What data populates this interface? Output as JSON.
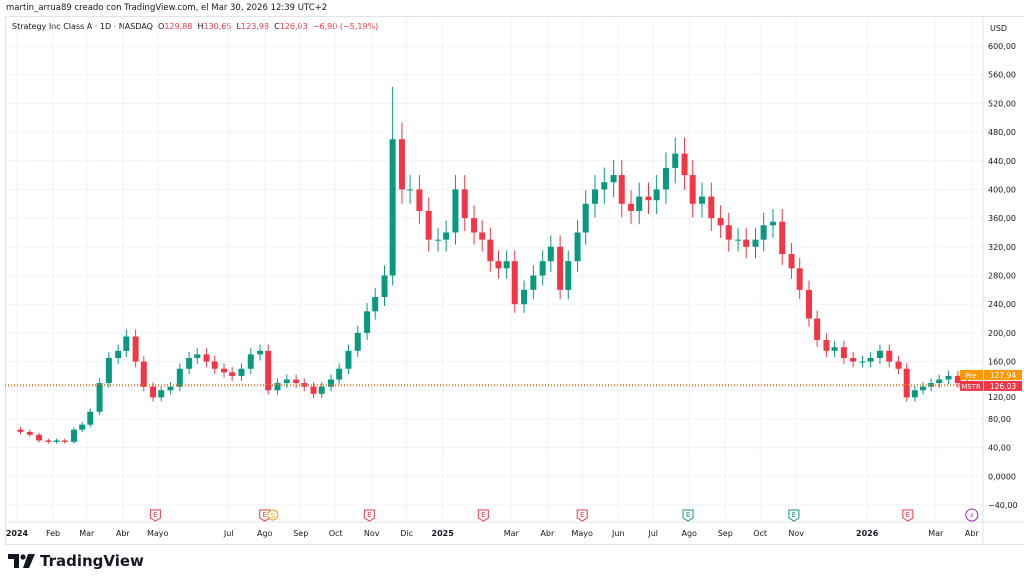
{
  "credit": "martin_arrua89 creado con TradingView.com, el Mar 30, 2026 12:39 UTC+2",
  "legend": {
    "symbol": "Strategy Inc Class A · 1D · NASDAQ",
    "o_label": "O",
    "o": "129,88",
    "h_label": "H",
    "h": "130,65",
    "l_label": "L",
    "l": "123,98",
    "c_label": "C",
    "c": "126,03",
    "change": "−6,90 (−5,19%)"
  },
  "currency": "USD",
  "colors": {
    "up": "#089981",
    "down": "#f23645",
    "pre": "#ff9800",
    "grid": "#f0f3fa",
    "dividend": "#ff9800",
    "split": "#9c27b0"
  },
  "price_tags": {
    "pre_label": "Pre",
    "pre_value": "127,94",
    "symbol_label": "MSTR",
    "last_value": "126,03"
  },
  "brand": "TradingView",
  "chart_data": {
    "type": "candlestick",
    "interval": "1D",
    "ylim": [
      -40,
      600
    ],
    "grid": true,
    "y_ticks": [
      "600,00",
      "560,00",
      "520,00",
      "480,00",
      "440,00",
      "400,00",
      "360,00",
      "320,00",
      "280,00",
      "240,00",
      "200,00",
      "160,00",
      "120,00",
      "80,00",
      "40,00",
      "0,0000",
      "−40,00"
    ],
    "y_tick_values": [
      600,
      560,
      520,
      480,
      440,
      400,
      360,
      320,
      280,
      240,
      200,
      160,
      120,
      80,
      40,
      0,
      -40
    ],
    "x_ticks": [
      {
        "label": "2024",
        "date": "2024-01-01"
      },
      {
        "label": "Feb",
        "date": "2024-02-01"
      },
      {
        "label": "Mar",
        "date": "2024-03-01"
      },
      {
        "label": "Abr",
        "date": "2024-04-01"
      },
      {
        "label": "Mayo",
        "date": "2024-05-01"
      },
      {
        "label": "Jul",
        "date": "2024-07-01"
      },
      {
        "label": "Ago",
        "date": "2024-08-01"
      },
      {
        "label": "Sep",
        "date": "2024-09-01"
      },
      {
        "label": "Oct",
        "date": "2024-10-01"
      },
      {
        "label": "Nov",
        "date": "2024-11-01"
      },
      {
        "label": "Dic",
        "date": "2024-12-01"
      },
      {
        "label": "2025",
        "date": "2025-01-01"
      },
      {
        "label": "Mar",
        "date": "2025-03-01"
      },
      {
        "label": "Abr",
        "date": "2025-04-01"
      },
      {
        "label": "Mayo",
        "date": "2025-05-01"
      },
      {
        "label": "Jun",
        "date": "2025-06-01"
      },
      {
        "label": "Jul",
        "date": "2025-07-01"
      },
      {
        "label": "Ago",
        "date": "2025-08-01"
      },
      {
        "label": "Sep",
        "date": "2025-09-01"
      },
      {
        "label": "Oct",
        "date": "2025-10-01"
      },
      {
        "label": "Nov",
        "date": "2025-11-01"
      },
      {
        "label": "2026",
        "date": "2026-01-01"
      },
      {
        "label": "Mar",
        "date": "2026-03-01"
      },
      {
        "label": "Abr",
        "date": "2026-04-01"
      }
    ],
    "monthly_closes": [
      {
        "month": "2024-01",
        "closes": [
          62,
          58,
          50,
          48
        ]
      },
      {
        "month": "2024-02",
        "closes": [
          50,
          48,
          65,
          72
        ]
      },
      {
        "month": "2024-03",
        "closes": [
          90,
          130,
          165,
          175
        ]
      },
      {
        "month": "2024-04",
        "closes": [
          195,
          160,
          125,
          110
        ]
      },
      {
        "month": "2024-05",
        "closes": [
          120,
          125,
          150,
          165
        ]
      },
      {
        "month": "2024-06",
        "closes": [
          170,
          160,
          150,
          145
        ]
      },
      {
        "month": "2024-07",
        "closes": [
          140,
          150,
          170,
          175
        ]
      },
      {
        "month": "2024-08",
        "closes": [
          120,
          130,
          135,
          130
        ]
      },
      {
        "month": "2024-09",
        "closes": [
          125,
          115,
          125,
          135
        ]
      },
      {
        "month": "2024-10",
        "closes": [
          150,
          175,
          200,
          230
        ]
      },
      {
        "month": "2024-11",
        "closes": [
          250,
          280,
          470,
          400
        ]
      },
      {
        "month": "2024-12",
        "closes": [
          400,
          370,
          330,
          330
        ]
      },
      {
        "month": "2025-01",
        "closes": [
          340,
          400,
          360,
          340
        ]
      },
      {
        "month": "2025-02",
        "closes": [
          330,
          300,
          290,
          300
        ]
      },
      {
        "month": "2025-03",
        "closes": [
          240,
          260,
          280,
          300
        ]
      },
      {
        "month": "2025-04",
        "closes": [
          320,
          260,
          300,
          340
        ]
      },
      {
        "month": "2025-05",
        "closes": [
          380,
          400,
          410,
          420
        ]
      },
      {
        "month": "2025-06",
        "closes": [
          380,
          370,
          390,
          385
        ]
      },
      {
        "month": "2025-07",
        "closes": [
          400,
          430,
          450,
          420
        ]
      },
      {
        "month": "2025-08",
        "closes": [
          380,
          390,
          360,
          350
        ]
      },
      {
        "month": "2025-09",
        "closes": [
          330,
          330,
          320,
          330
        ]
      },
      {
        "month": "2025-10",
        "closes": [
          350,
          355,
          310,
          290
        ]
      },
      {
        "month": "2025-11",
        "closes": [
          260,
          220,
          190,
          175
        ]
      },
      {
        "month": "2025-12",
        "closes": [
          180,
          165,
          160,
          160
        ]
      },
      {
        "month": "2026-01",
        "closes": [
          165,
          175,
          160,
          150
        ]
      },
      {
        "month": "2026-02",
        "closes": [
          110,
          120,
          125,
          130
        ]
      },
      {
        "month": "2026-03",
        "closes": [
          135,
          140,
          130,
          126
        ]
      }
    ],
    "peak_high": 543,
    "events": [
      {
        "type": "earnings",
        "label": "E",
        "date": "2024-04-29",
        "sentiment": "negative"
      },
      {
        "type": "earnings",
        "label": "E",
        "date": "2024-08-01",
        "sentiment": "negative"
      },
      {
        "type": "split",
        "label": "S",
        "date": "2024-08-08"
      },
      {
        "type": "earnings",
        "label": "E",
        "date": "2024-10-30",
        "sentiment": "negative"
      },
      {
        "type": "earnings",
        "label": "E",
        "date": "2025-02-05",
        "sentiment": "negative"
      },
      {
        "type": "earnings",
        "label": "E",
        "date": "2025-05-01",
        "sentiment": "negative"
      },
      {
        "type": "earnings",
        "label": "E",
        "date": "2025-07-31",
        "sentiment": "positive"
      },
      {
        "type": "earnings",
        "label": "E",
        "date": "2025-10-30",
        "sentiment": "positive"
      },
      {
        "type": "earnings",
        "label": "E",
        "date": "2026-02-05",
        "sentiment": "negative"
      },
      {
        "type": "upcoming",
        "label": "⚡",
        "date": "2026-04-01"
      }
    ]
  }
}
